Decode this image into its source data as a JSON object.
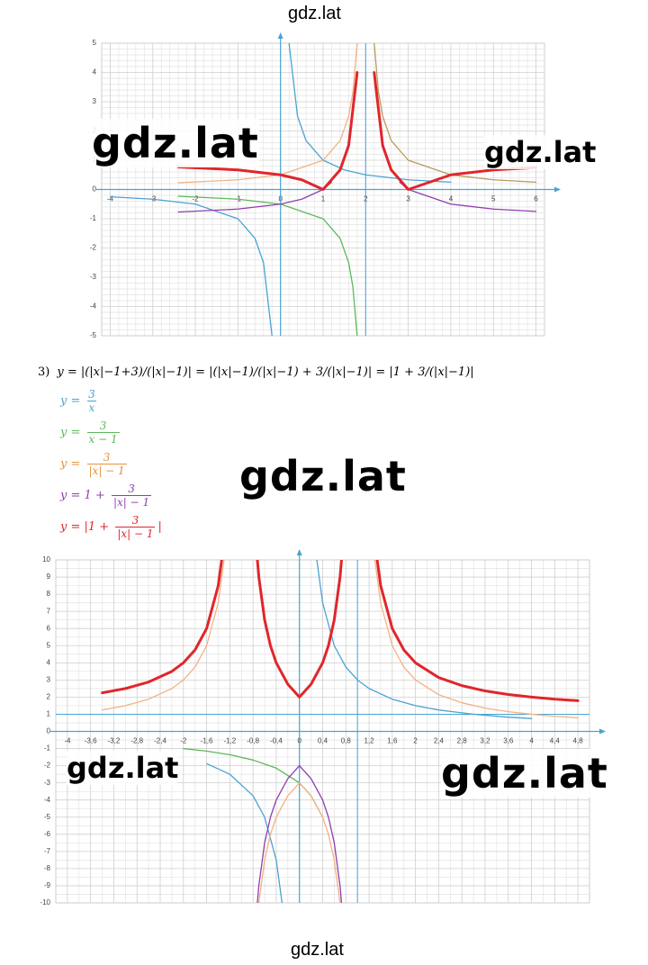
{
  "chart_data": [
    {
      "type": "line",
      "xlim": [
        -4.2,
        6.2
      ],
      "ylim": [
        -5,
        5
      ],
      "xticks": [
        -4,
        -3,
        -2,
        -1,
        0,
        1,
        2,
        3,
        4,
        5,
        6
      ],
      "yticks": [
        -5,
        -4,
        -3,
        -2,
        -1,
        0,
        1,
        2,
        3,
        4,
        5
      ],
      "vlines": [
        2
      ],
      "grid": true,
      "series": [
        {
          "color": "#4aa3d3",
          "x": [
            -4,
            -3,
            -2,
            -1,
            -0.6,
            -0.4,
            -0.2,
            null,
            0.2,
            0.4,
            0.6,
            1,
            1.5,
            2,
            3,
            4
          ],
          "values": [
            -0.25,
            -0.33,
            -0.5,
            -1,
            -1.67,
            -2.5,
            -5,
            null,
            5,
            2.5,
            1.67,
            1,
            0.67,
            0.5,
            0.33,
            0.25
          ]
        },
        {
          "color": "#5db85a",
          "x": [
            -2.4,
            -1,
            0,
            1,
            1.4,
            1.6,
            1.7,
            1.8
          ],
          "values": [
            -0.23,
            -0.33,
            -0.5,
            -1,
            -1.67,
            -2.5,
            -3.33,
            -5
          ]
        },
        {
          "color": "#f4b183",
          "x": [
            -2.4,
            -1,
            0,
            1,
            1.4,
            1.6,
            1.7,
            1.8
          ],
          "values": [
            0.23,
            0.33,
            0.5,
            1,
            1.67,
            2.5,
            3.33,
            5
          ]
        },
        {
          "color": "#b89b5a",
          "x": [
            2.2,
            2.3,
            2.4,
            2.6,
            3,
            4,
            5,
            6
          ],
          "values": [
            5,
            3.33,
            2.5,
            1.67,
            1,
            0.5,
            0.33,
            0.25
          ]
        },
        {
          "color": "#8e3fb0",
          "x": [
            -2.4,
            -1,
            0,
            0.5,
            1,
            1.2,
            null,
            2.8,
            3,
            4,
            5,
            6
          ],
          "values": [
            -0.77,
            -0.67,
            -0.5,
            -0.33,
            0,
            0.25,
            null,
            0.25,
            0,
            -0.5,
            -0.67,
            -0.75
          ]
        },
        {
          "color": "#e0262b",
          "x": [
            -2.4,
            -1,
            0,
            0.5,
            1,
            1.4,
            1.6,
            1.8,
            null,
            2.2,
            2.4,
            2.6,
            3,
            4,
            5,
            6
          ],
          "values": [
            0.77,
            0.67,
            0.5,
            0.33,
            0,
            0.67,
            1.5,
            4,
            null,
            4,
            1.5,
            0.67,
            0,
            0.5,
            0.67,
            0.75
          ]
        }
      ]
    },
    {
      "type": "line",
      "xlim": [
        -4.2,
        5
      ],
      "ylim": [
        -10,
        10
      ],
      "xticks": [
        -4,
        {
          "value": -3.6,
          "label": "-3,6"
        },
        {
          "value": -3.2,
          "label": "-3,2"
        },
        {
          "value": -2.8,
          "label": "-2,8"
        },
        {
          "value": -2.4,
          "label": "-2,4"
        },
        -2,
        {
          "value": -1.6,
          "label": "-1,6"
        },
        {
          "value": -1.2,
          "label": "-1,2"
        },
        {
          "value": -0.8,
          "label": "-0,8"
        },
        {
          "value": -0.4,
          "label": "-0,4"
        },
        0,
        {
          "value": 0.4,
          "label": "0,4"
        },
        {
          "value": 0.8,
          "label": "0,8"
        },
        {
          "value": 1.2,
          "label": "1,2"
        },
        {
          "value": 1.6,
          "label": "1,6"
        },
        2,
        {
          "value": 2.4,
          "label": "2,4"
        },
        {
          "value": 2.8,
          "label": "2,8"
        },
        {
          "value": 3.2,
          "label": "3,2"
        },
        {
          "value": 3.6,
          "label": "3,6"
        },
        4,
        {
          "value": 4.4,
          "label": "4,4"
        },
        {
          "value": 4.8,
          "label": "4,8"
        }
      ],
      "yticks": [
        -10,
        -9,
        -8,
        -7,
        -6,
        -5,
        -4,
        -3,
        -2,
        -1,
        0,
        1,
        2,
        3,
        4,
        5,
        6,
        7,
        8,
        9,
        10
      ],
      "vlines": [
        1
      ],
      "hlines": [
        1
      ],
      "grid": true,
      "series": [
        {
          "color": "#4aa3d3",
          "x": [
            -1.6,
            -1.2,
            -0.8,
            -0.6,
            -0.4,
            -0.3,
            null,
            0.3,
            0.4,
            0.6,
            0.8,
            1,
            1.2,
            1.6,
            2,
            2.4,
            3,
            3.6,
            4
          ],
          "values": [
            -1.88,
            -2.5,
            -3.75,
            -5,
            -7.5,
            -10,
            null,
            10,
            7.5,
            5,
            3.75,
            3,
            2.5,
            1.88,
            1.5,
            1.25,
            1,
            0.83,
            0.75
          ]
        },
        {
          "color": "#5db85a",
          "x": [
            -2,
            -1.6,
            -1.2,
            -0.8,
            -0.4,
            0,
            0.2,
            0.4
          ],
          "values": [
            -1,
            -1.15,
            -1.36,
            -1.67,
            -2.14,
            -3,
            -3.75,
            -5
          ]
        },
        {
          "color": "#f4b183",
          "x": [
            -3.4,
            -3,
            -2.6,
            -2.2,
            -2,
            -1.8,
            -1.6,
            -1.4,
            -1.3,
            null,
            -0.75,
            -0.7,
            -0.6,
            -0.5,
            -0.4,
            -0.2,
            0,
            0.2,
            0.4,
            0.5,
            0.6,
            0.7,
            0.75,
            null,
            1.3,
            1.4,
            1.6,
            1.8,
            2,
            2.4,
            2.8,
            3.2,
            3.6,
            4,
            4.4,
            4.8
          ],
          "values": [
            1.25,
            1.5,
            1.88,
            2.5,
            3,
            3.75,
            5,
            7.5,
            10,
            null,
            -12,
            -10,
            -7.5,
            -6,
            -5,
            -3.75,
            -3,
            -3.75,
            -5,
            -6,
            -7.5,
            -10,
            -12,
            null,
            10,
            7.5,
            5,
            3.75,
            3,
            2.14,
            1.67,
            1.36,
            1.15,
            1,
            0.88,
            0.79
          ]
        },
        {
          "color": "#8e3fb0",
          "x": [
            -0.75,
            -0.7,
            -0.6,
            -0.5,
            -0.4,
            -0.2,
            0,
            0.2,
            0.4,
            0.5,
            0.6,
            0.7,
            0.75
          ],
          "values": [
            -11,
            -9,
            -6.5,
            -5,
            -4,
            -2.75,
            -2,
            -2.75,
            -4,
            -5,
            -6.5,
            -9,
            -11
          ]
        },
        {
          "color": "#e0262b",
          "x": [
            -3.4,
            -3,
            -2.6,
            -2.2,
            -2,
            -1.8,
            -1.6,
            -1.4,
            -1.3,
            null,
            -0.75,
            -0.7,
            -0.6,
            -0.5,
            -0.4,
            -0.2,
            0,
            0.2,
            0.4,
            0.5,
            0.6,
            0.7,
            0.75,
            null,
            1.3,
            1.4,
            1.6,
            1.8,
            2,
            2.4,
            2.8,
            3.2,
            3.6,
            4,
            4.4,
            4.8
          ],
          "values": [
            2.25,
            2.5,
            2.88,
            3.5,
            4,
            4.75,
            6,
            8.5,
            11,
            null,
            11,
            9,
            6.5,
            5,
            4,
            2.75,
            2,
            2.75,
            4,
            5,
            6.5,
            9,
            11,
            null,
            11,
            8.5,
            6,
            4.75,
            4,
            3.14,
            2.67,
            2.36,
            2.15,
            2,
            1.88,
            1.79
          ]
        }
      ]
    }
  ],
  "solution": {
    "number": "3)",
    "equation": "y = |(|x|−1+3)/(|x|−1)| = |(|x|−1)/(|x|−1) + 3/(|x|−1)| = |1 + 3/(|x|−1)|",
    "formulas": [
      {
        "prefix": "y = ",
        "num": "3",
        "den": "x",
        "suffix": "",
        "color": "#4aa3d3"
      },
      {
        "prefix": "y = ",
        "num": "3",
        "den": "x − 1",
        "suffix": "",
        "color": "#5db85a"
      },
      {
        "prefix": "y = ",
        "num": "3",
        "den": "|x| − 1",
        "suffix": "",
        "color": "#e69138"
      },
      {
        "prefix": "y = 1 + ",
        "num": "3",
        "den": "|x| − 1",
        "suffix": "",
        "color": "#8e3fb0"
      },
      {
        "prefix": "y = |1 + ",
        "num": "3",
        "den": "|x| − 1",
        "suffix": "|",
        "color": "#e0262b"
      }
    ]
  },
  "watermarks": [
    "gdz.lat",
    "gdz.lat",
    "gdz.lat",
    "gdz.lat",
    "gdz.lat",
    "gdz.lat",
    "gdz.lat"
  ]
}
